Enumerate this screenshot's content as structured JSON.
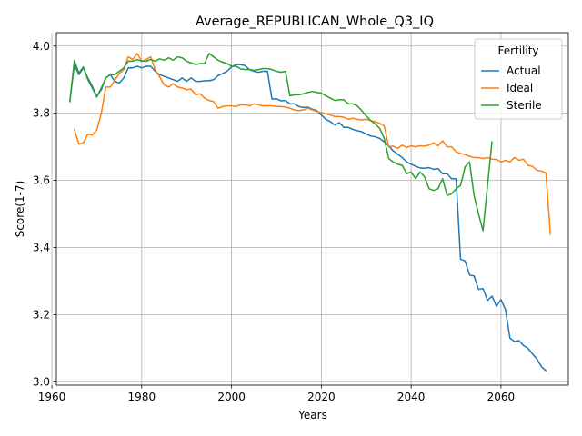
{
  "chart_data": {
    "type": "line",
    "title": "Average_REPUBLICAN_Whole_Q3_IQ",
    "xlabel": "Years",
    "ylabel": "Score(1-7)",
    "xlim": [
      1961,
      2075
    ],
    "ylim": [
      2.99,
      4.04
    ],
    "xticks": [
      1960,
      1980,
      2000,
      2020,
      2040,
      2060
    ],
    "yticks": [
      "3.0",
      "3.2",
      "3.4",
      "3.6",
      "3.8",
      "4.0"
    ],
    "grid": true,
    "legend": {
      "title": "Fertility",
      "placement": "top-right"
    },
    "series": [
      {
        "name": "Actual",
        "color": "#1f77b4",
        "points": [
          [
            1964,
            3.835
          ],
          [
            1965,
            3.945
          ],
          [
            1966,
            3.915
          ],
          [
            1967,
            3.935
          ],
          [
            1968,
            3.905
          ],
          [
            1969,
            3.88
          ],
          [
            1970,
            3.85
          ],
          [
            1971,
            3.87
          ],
          [
            1972,
            3.905
          ],
          [
            1973,
            3.915
          ],
          [
            1974,
            3.895
          ],
          [
            1975,
            3.89
          ],
          [
            1976,
            3.905
          ],
          [
            1977,
            3.935
          ],
          [
            1978,
            3.935
          ],
          [
            1979,
            3.94
          ],
          [
            1980,
            3.935
          ],
          [
            1981,
            3.94
          ],
          [
            1982,
            3.94
          ],
          [
            1983,
            3.925
          ],
          [
            1984,
            3.915
          ],
          [
            1985,
            3.91
          ],
          [
            1986,
            3.905
          ],
          [
            1987,
            3.9
          ],
          [
            1988,
            3.895
          ],
          [
            1989,
            3.905
          ],
          [
            1990,
            3.895
          ],
          [
            1991,
            3.905
          ],
          [
            1992,
            3.895
          ],
          [
            1993,
            3.895
          ],
          [
            1994,
            3.897
          ],
          [
            1995,
            3.897
          ],
          [
            1996,
            3.9
          ],
          [
            1997,
            3.912
          ],
          [
            1998,
            3.918
          ],
          [
            1999,
            3.925
          ],
          [
            2000,
            3.938
          ],
          [
            2001,
            3.945
          ],
          [
            2002,
            3.945
          ],
          [
            2003,
            3.942
          ],
          [
            2004,
            3.93
          ],
          [
            2005,
            3.925
          ],
          [
            2006,
            3.922
          ],
          [
            2007,
            3.925
          ],
          [
            2008,
            3.925
          ],
          [
            2009,
            3.842
          ],
          [
            2010,
            3.843
          ],
          [
            2011,
            3.837
          ],
          [
            2012,
            3.838
          ],
          [
            2013,
            3.828
          ],
          [
            2014,
            3.828
          ],
          [
            2015,
            3.82
          ],
          [
            2016,
            3.817
          ],
          [
            2017,
            3.818
          ],
          [
            2018,
            3.812
          ],
          [
            2019,
            3.808
          ],
          [
            2020,
            3.795
          ],
          [
            2021,
            3.782
          ],
          [
            2022,
            3.775
          ],
          [
            2023,
            3.765
          ],
          [
            2024,
            3.772
          ],
          [
            2025,
            3.758
          ],
          [
            2026,
            3.758
          ],
          [
            2027,
            3.752
          ],
          [
            2028,
            3.748
          ],
          [
            2029,
            3.745
          ],
          [
            2030,
            3.738
          ],
          [
            2031,
            3.732
          ],
          [
            2032,
            3.73
          ],
          [
            2033,
            3.725
          ],
          [
            2034,
            3.715
          ],
          [
            2035,
            3.703
          ],
          [
            2036,
            3.688
          ],
          [
            2037,
            3.678
          ],
          [
            2038,
            3.668
          ],
          [
            2039,
            3.655
          ],
          [
            2040,
            3.648
          ],
          [
            2041,
            3.642
          ],
          [
            2042,
            3.637
          ],
          [
            2043,
            3.636
          ],
          [
            2044,
            3.638
          ],
          [
            2045,
            3.633
          ],
          [
            2046,
            3.635
          ],
          [
            2047,
            3.62
          ],
          [
            2048,
            3.62
          ],
          [
            2049,
            3.605
          ],
          [
            2050,
            3.605
          ],
          [
            2051,
            3.365
          ],
          [
            2052,
            3.36
          ],
          [
            2053,
            3.318
          ],
          [
            2054,
            3.315
          ],
          [
            2055,
            3.275
          ],
          [
            2056,
            3.278
          ],
          [
            2057,
            3.242
          ],
          [
            2058,
            3.255
          ],
          [
            2059,
            3.225
          ],
          [
            2060,
            3.245
          ],
          [
            2061,
            3.215
          ],
          [
            2062,
            3.13
          ],
          [
            2063,
            3.12
          ],
          [
            2064,
            3.123
          ],
          [
            2065,
            3.108
          ],
          [
            2066,
            3.1
          ],
          [
            2067,
            3.083
          ],
          [
            2068,
            3.068
          ],
          [
            2069,
            3.045
          ],
          [
            2070,
            3.033
          ]
        ]
      },
      {
        "name": "Ideal",
        "color": "#ff7f0e",
        "points": [
          [
            1965,
            3.752
          ],
          [
            1966,
            3.708
          ],
          [
            1967,
            3.712
          ],
          [
            1968,
            3.738
          ],
          [
            1969,
            3.735
          ],
          [
            1970,
            3.75
          ],
          [
            1971,
            3.8
          ],
          [
            1972,
            3.878
          ],
          [
            1973,
            3.878
          ],
          [
            1974,
            3.898
          ],
          [
            1975,
            3.918
          ],
          [
            1976,
            3.93
          ],
          [
            1977,
            3.968
          ],
          [
            1978,
            3.96
          ],
          [
            1979,
            3.978
          ],
          [
            1980,
            3.955
          ],
          [
            1981,
            3.96
          ],
          [
            1982,
            3.968
          ],
          [
            1983,
            3.93
          ],
          [
            1984,
            3.908
          ],
          [
            1985,
            3.885
          ],
          [
            1986,
            3.878
          ],
          [
            1987,
            3.888
          ],
          [
            1988,
            3.878
          ],
          [
            1989,
            3.875
          ],
          [
            1990,
            3.87
          ],
          [
            1991,
            3.872
          ],
          [
            1992,
            3.855
          ],
          [
            1993,
            3.858
          ],
          [
            1994,
            3.845
          ],
          [
            1995,
            3.838
          ],
          [
            1996,
            3.835
          ],
          [
            1997,
            3.815
          ],
          [
            1998,
            3.82
          ],
          [
            1999,
            3.822
          ],
          [
            2000,
            3.822
          ],
          [
            2001,
            3.82
          ],
          [
            2002,
            3.825
          ],
          [
            2003,
            3.825
          ],
          [
            2004,
            3.822
          ],
          [
            2005,
            3.828
          ],
          [
            2006,
            3.825
          ],
          [
            2007,
            3.822
          ],
          [
            2008,
            3.822
          ],
          [
            2009,
            3.822
          ],
          [
            2010,
            3.82
          ],
          [
            2011,
            3.82
          ],
          [
            2012,
            3.818
          ],
          [
            2013,
            3.815
          ],
          [
            2014,
            3.81
          ],
          [
            2015,
            3.808
          ],
          [
            2016,
            3.81
          ],
          [
            2017,
            3.815
          ],
          [
            2018,
            3.81
          ],
          [
            2019,
            3.805
          ],
          [
            2020,
            3.802
          ],
          [
            2021,
            3.798
          ],
          [
            2022,
            3.795
          ],
          [
            2023,
            3.79
          ],
          [
            2024,
            3.79
          ],
          [
            2025,
            3.788
          ],
          [
            2026,
            3.782
          ],
          [
            2027,
            3.785
          ],
          [
            2028,
            3.782
          ],
          [
            2029,
            3.78
          ],
          [
            2030,
            3.782
          ],
          [
            2031,
            3.778
          ],
          [
            2032,
            3.775
          ],
          [
            2033,
            3.77
          ],
          [
            2034,
            3.762
          ],
          [
            2035,
            3.7
          ],
          [
            2036,
            3.702
          ],
          [
            2037,
            3.695
          ],
          [
            2038,
            3.705
          ],
          [
            2039,
            3.698
          ],
          [
            2040,
            3.703
          ],
          [
            2041,
            3.7
          ],
          [
            2042,
            3.703
          ],
          [
            2043,
            3.702
          ],
          [
            2044,
            3.705
          ],
          [
            2045,
            3.712
          ],
          [
            2046,
            3.703
          ],
          [
            2047,
            3.718
          ],
          [
            2048,
            3.7
          ],
          [
            2049,
            3.7
          ],
          [
            2050,
            3.685
          ],
          [
            2051,
            3.68
          ],
          [
            2052,
            3.677
          ],
          [
            2053,
            3.672
          ],
          [
            2054,
            3.668
          ],
          [
            2055,
            3.668
          ],
          [
            2056,
            3.665
          ],
          [
            2057,
            3.668
          ],
          [
            2058,
            3.663
          ],
          [
            2059,
            3.662
          ],
          [
            2060,
            3.655
          ],
          [
            2061,
            3.66
          ],
          [
            2062,
            3.655
          ],
          [
            2063,
            3.668
          ],
          [
            2064,
            3.66
          ],
          [
            2065,
            3.663
          ],
          [
            2066,
            3.645
          ],
          [
            2067,
            3.642
          ],
          [
            2068,
            3.63
          ],
          [
            2069,
            3.628
          ],
          [
            2070,
            3.622
          ],
          [
            2071,
            3.44
          ]
        ]
      },
      {
        "name": "Sterile",
        "color": "#2ca02c",
        "points": [
          [
            1964,
            3.835
          ],
          [
            1965,
            3.957
          ],
          [
            1966,
            3.92
          ],
          [
            1967,
            3.938
          ],
          [
            1968,
            3.9
          ],
          [
            1969,
            3.875
          ],
          [
            1970,
            3.848
          ],
          [
            1971,
            3.875
          ],
          [
            1972,
            3.905
          ],
          [
            1973,
            3.915
          ],
          [
            1974,
            3.915
          ],
          [
            1975,
            3.925
          ],
          [
            1976,
            3.935
          ],
          [
            1977,
            3.955
          ],
          [
            1978,
            3.955
          ],
          [
            1979,
            3.96
          ],
          [
            1980,
            3.955
          ],
          [
            1981,
            3.955
          ],
          [
            1982,
            3.96
          ],
          [
            1983,
            3.955
          ],
          [
            1984,
            3.962
          ],
          [
            1985,
            3.958
          ],
          [
            1986,
            3.965
          ],
          [
            1987,
            3.958
          ],
          [
            1988,
            3.968
          ],
          [
            1989,
            3.965
          ],
          [
            1990,
            3.955
          ],
          [
            1991,
            3.95
          ],
          [
            1992,
            3.945
          ],
          [
            1993,
            3.948
          ],
          [
            1994,
            3.948
          ],
          [
            1995,
            3.978
          ],
          [
            1996,
            3.968
          ],
          [
            1997,
            3.958
          ],
          [
            1998,
            3.952
          ],
          [
            1999,
            3.948
          ],
          [
            2000,
            3.94
          ],
          [
            2001,
            3.94
          ],
          [
            2002,
            3.932
          ],
          [
            2003,
            3.93
          ],
          [
            2004,
            3.93
          ],
          [
            2005,
            3.928
          ],
          [
            2006,
            3.93
          ],
          [
            2007,
            3.933
          ],
          [
            2008,
            3.933
          ],
          [
            2009,
            3.93
          ],
          [
            2010,
            3.925
          ],
          [
            2011,
            3.922
          ],
          [
            2012,
            3.925
          ],
          [
            2013,
            3.852
          ],
          [
            2014,
            3.855
          ],
          [
            2015,
            3.855
          ],
          [
            2016,
            3.858
          ],
          [
            2017,
            3.862
          ],
          [
            2018,
            3.865
          ],
          [
            2019,
            3.862
          ],
          [
            2020,
            3.86
          ],
          [
            2021,
            3.852
          ],
          [
            2022,
            3.845
          ],
          [
            2023,
            3.838
          ],
          [
            2024,
            3.84
          ],
          [
            2025,
            3.84
          ],
          [
            2026,
            3.828
          ],
          [
            2027,
            3.828
          ],
          [
            2028,
            3.822
          ],
          [
            2029,
            3.808
          ],
          [
            2030,
            3.792
          ],
          [
            2031,
            3.778
          ],
          [
            2032,
            3.768
          ],
          [
            2033,
            3.755
          ],
          [
            2034,
            3.725
          ],
          [
            2035,
            3.665
          ],
          [
            2036,
            3.655
          ],
          [
            2037,
            3.648
          ],
          [
            2038,
            3.645
          ],
          [
            2039,
            3.62
          ],
          [
            2040,
            3.625
          ],
          [
            2041,
            3.605
          ],
          [
            2042,
            3.625
          ],
          [
            2043,
            3.61
          ],
          [
            2044,
            3.575
          ],
          [
            2045,
            3.57
          ],
          [
            2046,
            3.575
          ],
          [
            2047,
            3.605
          ],
          [
            2048,
            3.555
          ],
          [
            2049,
            3.56
          ],
          [
            2050,
            3.575
          ],
          [
            2051,
            3.585
          ],
          [
            2052,
            3.64
          ],
          [
            2053,
            3.655
          ],
          [
            2054,
            3.555
          ],
          [
            2055,
            3.5
          ],
          [
            2056,
            3.45
          ],
          [
            2057,
            3.585
          ],
          [
            2058,
            3.715
          ]
        ]
      }
    ]
  }
}
